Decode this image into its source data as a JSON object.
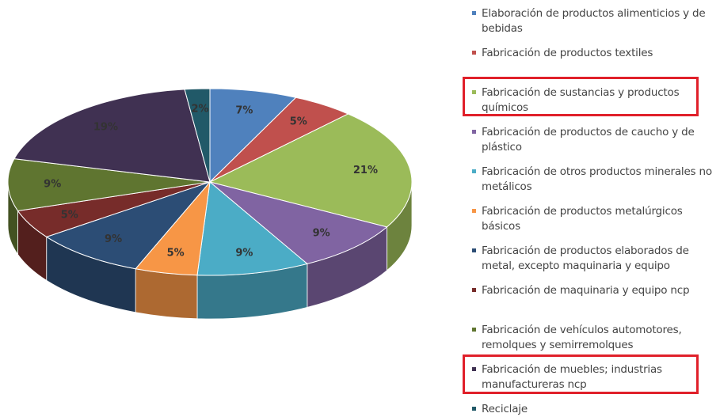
{
  "chart_data": {
    "type": "pie",
    "categories": [
      "Elaboración de productos alimenticios y de bebidas",
      "Fabricación de productos textiles",
      "Fabricación de sustancias y productos químicos",
      "Fabricación de productos de caucho y de plástico",
      "Fabricación de otros productos minerales no metálicos",
      "Fabricación de productos metalúrgicos básicos",
      "Fabricación de productos elaborados de metal, excepto maquinaria y equipo",
      "Fabricación de maquinaria y equipo ncp",
      "Fabricación de vehículos automotores, remolques y semirremolques",
      "Fabricación de muebles; industrias manufactureras ncp",
      "Reciclaje"
    ],
    "values": [
      7,
      5,
      21,
      9,
      9,
      5,
      9,
      5,
      9,
      19,
      2
    ],
    "value_labels": [
      "7%",
      "5%",
      "21%",
      "9%",
      "9%",
      "5%",
      "9%",
      "5%",
      "9%",
      "19%",
      "2%"
    ],
    "colors": [
      "#4f81bd",
      "#c0504d",
      "#9bbb59",
      "#8064a2",
      "#4bacc6",
      "#f79646",
      "#2c4d75",
      "#772c2a",
      "#5f7530",
      "#403152",
      "#215968"
    ]
  }
}
